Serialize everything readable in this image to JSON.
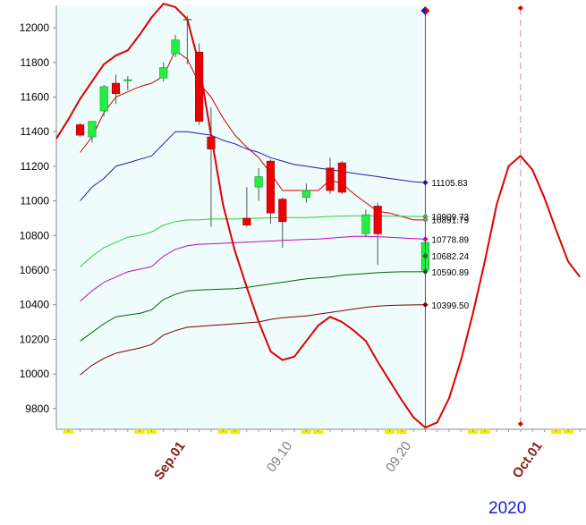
{
  "chart_data": {
    "type": "candlestick",
    "ylim": [
      9680,
      12130
    ],
    "y_ticks": [
      9800,
      10000,
      10200,
      10400,
      10600,
      10800,
      11000,
      11200,
      11400,
      11600,
      11800,
      12000
    ],
    "x_labels": [
      {
        "text": "Sep.01",
        "index": 9,
        "color": "#8b1a1a",
        "bold": true
      },
      {
        "text": "09.10",
        "index": 18,
        "color": "#808080",
        "bold": false
      },
      {
        "text": "09.20",
        "index": 28,
        "color": "#808080",
        "bold": false
      },
      {
        "text": "Oct.01",
        "index": 39,
        "color": "#8b1a1a",
        "bold": true
      }
    ],
    "year_label": "2020",
    "date_range": [
      -2,
      42.5
    ],
    "last_data_index": 29,
    "future_marker_index": 37,
    "grid": false,
    "candles": [
      {
        "i": 0,
        "open": 11440,
        "high": 11450,
        "low": 11370,
        "close": 11380
      },
      {
        "i": 1,
        "open": 11370,
        "high": 11460,
        "low": 11340,
        "close": 11460
      },
      {
        "i": 2,
        "open": 11520,
        "high": 11670,
        "low": 11490,
        "close": 11660
      },
      {
        "i": 3,
        "open": 11680,
        "high": 11730,
        "low": 11560,
        "close": 11620
      },
      {
        "i": 4,
        "open": 11695,
        "high": 11720,
        "low": 11640,
        "close": 11700
      },
      {
        "i": 7,
        "open": 11710,
        "high": 11800,
        "low": 11690,
        "close": 11770
      },
      {
        "i": 8,
        "open": 11850,
        "high": 11960,
        "low": 11830,
        "close": 11930
      },
      {
        "i": 9,
        "open": 12050,
        "high": 12070,
        "low": 11790,
        "close": 12050
      },
      {
        "i": 10,
        "open": 11860,
        "high": 11910,
        "low": 11440,
        "close": 11460
      },
      {
        "i": 11,
        "open": 11370,
        "high": 11540,
        "low": 10850,
        "close": 11300
      },
      {
        "i": 14,
        "open": 10900,
        "high": 11080,
        "low": 10850,
        "close": 10860
      },
      {
        "i": 15,
        "open": 11080,
        "high": 11190,
        "low": 11000,
        "close": 11140
      },
      {
        "i": 16,
        "open": 11230,
        "high": 11240,
        "low": 10870,
        "close": 10930
      },
      {
        "i": 17,
        "open": 11010,
        "high": 11020,
        "low": 10730,
        "close": 10880
      },
      {
        "i": 19,
        "open": 11020,
        "high": 11100,
        "low": 10990,
        "close": 11060
      },
      {
        "i": 21,
        "open": 11190,
        "high": 11250,
        "low": 11040,
        "close": 11060
      },
      {
        "i": 22,
        "open": 11220,
        "high": 11230,
        "low": 11040,
        "close": 11050
      },
      {
        "i": 24,
        "open": 10810,
        "high": 10950,
        "low": 10790,
        "close": 10920
      },
      {
        "i": 25,
        "open": 10970,
        "high": 10990,
        "low": 10630,
        "close": 10810
      },
      {
        "i": 29,
        "open": 10600,
        "high": 10780,
        "low": 10590,
        "close": 10760
      }
    ],
    "series": [
      {
        "color": "#cc0000",
        "width": 1,
        "end_label": "",
        "points": [
          [
            0,
            11280
          ],
          [
            1,
            11370
          ],
          [
            2,
            11510
          ],
          [
            3,
            11600
          ],
          [
            4,
            11630
          ],
          [
            5,
            11660
          ],
          [
            6,
            11680
          ],
          [
            7,
            11720
          ],
          [
            8,
            11870
          ],
          [
            9,
            11820
          ],
          [
            10,
            11680
          ],
          [
            11,
            11600
          ],
          [
            12,
            11480
          ],
          [
            13,
            11380
          ],
          [
            14,
            11310
          ],
          [
            15,
            11250
          ],
          [
            16,
            11160
          ],
          [
            17,
            11060
          ],
          [
            18,
            11060
          ],
          [
            19,
            11060
          ],
          [
            20,
            11060
          ],
          [
            21,
            11120
          ],
          [
            22,
            11100
          ],
          [
            23,
            11040
          ],
          [
            24,
            10990
          ],
          [
            25,
            10940
          ],
          [
            26,
            10930
          ],
          [
            27,
            10910
          ],
          [
            28,
            10890
          ],
          [
            29,
            10890
          ]
        ]
      },
      {
        "color": "#1a1ab0",
        "width": 1,
        "end_label": "11105.83",
        "points": [
          [
            0,
            11000
          ],
          [
            1,
            11080
          ],
          [
            2,
            11130
          ],
          [
            3,
            11200
          ],
          [
            4,
            11220
          ],
          [
            5,
            11240
          ],
          [
            6,
            11260
          ],
          [
            7,
            11330
          ],
          [
            8,
            11400
          ],
          [
            9,
            11400
          ],
          [
            10,
            11390
          ],
          [
            11,
            11380
          ],
          [
            12,
            11350
          ],
          [
            13,
            11330
          ],
          [
            14,
            11300
          ],
          [
            15,
            11280
          ],
          [
            16,
            11250
          ],
          [
            17,
            11230
          ],
          [
            18,
            11210
          ],
          [
            19,
            11200
          ],
          [
            20,
            11190
          ],
          [
            21,
            11180
          ],
          [
            22,
            11170
          ],
          [
            23,
            11160
          ],
          [
            24,
            11150
          ],
          [
            25,
            11140
          ],
          [
            26,
            11130
          ],
          [
            27,
            11120
          ],
          [
            28,
            11110
          ],
          [
            29,
            11105.83
          ]
        ]
      },
      {
        "color": "#33cc33",
        "width": 1,
        "end_label": "10909.73",
        "points": [
          [
            0,
            10620
          ],
          [
            1,
            10680
          ],
          [
            2,
            10730
          ],
          [
            3,
            10760
          ],
          [
            4,
            10790
          ],
          [
            5,
            10800
          ],
          [
            6,
            10820
          ],
          [
            7,
            10860
          ],
          [
            8,
            10880
          ],
          [
            9,
            10890
          ],
          [
            10,
            10890
          ],
          [
            11,
            10895
          ],
          [
            12,
            10895
          ],
          [
            13,
            10895
          ],
          [
            14,
            10898
          ],
          [
            15,
            10900
          ],
          [
            16,
            10902
          ],
          [
            17,
            10904
          ],
          [
            18,
            10904
          ],
          [
            19,
            10904
          ],
          [
            20,
            10906
          ],
          [
            21,
            10910
          ],
          [
            22,
            10912
          ],
          [
            23,
            10914
          ],
          [
            24,
            10914
          ],
          [
            25,
            10913
          ],
          [
            26,
            10912
          ],
          [
            27,
            10911
          ],
          [
            28,
            10910
          ],
          [
            29,
            10909.73
          ]
        ]
      },
      {
        "color": "#cc00cc",
        "width": 1,
        "end_label": "10778.89",
        "points": [
          [
            0,
            10420
          ],
          [
            1,
            10480
          ],
          [
            2,
            10530
          ],
          [
            3,
            10560
          ],
          [
            4,
            10590
          ],
          [
            5,
            10605
          ],
          [
            6,
            10620
          ],
          [
            7,
            10680
          ],
          [
            8,
            10720
          ],
          [
            9,
            10740
          ],
          [
            10,
            10750
          ],
          [
            11,
            10752
          ],
          [
            12,
            10755
          ],
          [
            13,
            10758
          ],
          [
            14,
            10762
          ],
          [
            15,
            10765
          ],
          [
            16,
            10768
          ],
          [
            17,
            10772
          ],
          [
            18,
            10775
          ],
          [
            19,
            10778
          ],
          [
            20,
            10780
          ],
          [
            21,
            10785
          ],
          [
            22,
            10790
          ],
          [
            23,
            10795
          ],
          [
            24,
            10795
          ],
          [
            25,
            10793
          ],
          [
            26,
            10790
          ],
          [
            27,
            10786
          ],
          [
            28,
            10782
          ],
          [
            29,
            10778.89
          ]
        ]
      },
      {
        "color": "#006600",
        "width": 1,
        "end_label": "10590.89",
        "points": [
          [
            0,
            10190
          ],
          [
            1,
            10240
          ],
          [
            2,
            10290
          ],
          [
            3,
            10330
          ],
          [
            4,
            10340
          ],
          [
            5,
            10350
          ],
          [
            6,
            10370
          ],
          [
            7,
            10430
          ],
          [
            8,
            10460
          ],
          [
            9,
            10480
          ],
          [
            10,
            10485
          ],
          [
            11,
            10488
          ],
          [
            12,
            10490
          ],
          [
            13,
            10493
          ],
          [
            14,
            10500
          ],
          [
            15,
            10510
          ],
          [
            16,
            10520
          ],
          [
            17,
            10530
          ],
          [
            18,
            10540
          ],
          [
            19,
            10550
          ],
          [
            20,
            10555
          ],
          [
            21,
            10560
          ],
          [
            22,
            10570
          ],
          [
            23,
            10575
          ],
          [
            24,
            10580
          ],
          [
            25,
            10585
          ],
          [
            26,
            10588
          ],
          [
            27,
            10590
          ],
          [
            28,
            10590
          ],
          [
            29,
            10590.89
          ]
        ]
      },
      {
        "color": "#800000",
        "width": 1,
        "end_label": "10399.50",
        "points": [
          [
            0,
            9995
          ],
          [
            1,
            10050
          ],
          [
            2,
            10090
          ],
          [
            3,
            10120
          ],
          [
            4,
            10135
          ],
          [
            5,
            10150
          ],
          [
            6,
            10170
          ],
          [
            7,
            10225
          ],
          [
            8,
            10250
          ],
          [
            9,
            10270
          ],
          [
            10,
            10275
          ],
          [
            11,
            10280
          ],
          [
            12,
            10285
          ],
          [
            13,
            10290
          ],
          [
            14,
            10295
          ],
          [
            15,
            10300
          ],
          [
            16,
            10315
          ],
          [
            17,
            10325
          ],
          [
            18,
            10330
          ],
          [
            19,
            10335
          ],
          [
            20,
            10345
          ],
          [
            21,
            10355
          ],
          [
            22,
            10365
          ],
          [
            23,
            10375
          ],
          [
            24,
            10385
          ],
          [
            25,
            10392
          ],
          [
            26,
            10396
          ],
          [
            27,
            10398
          ],
          [
            28,
            10399
          ],
          [
            29,
            10399.5
          ]
        ]
      },
      {
        "color": "#1a7a1a",
        "width": 1,
        "end_label": "10682.24",
        "points": [
          [
            29,
            10682.24
          ]
        ]
      },
      {
        "color": "#888888",
        "width": 1,
        "end_label": "10891.79",
        "points": [
          [
            29,
            10891.79
          ]
        ]
      },
      {
        "color": "#dd0000",
        "width": 2,
        "end_label": "",
        "points": [
          [
            -2,
            11360
          ],
          [
            -1,
            11470
          ],
          [
            0,
            11590
          ],
          [
            1,
            11690
          ],
          [
            2,
            11790
          ],
          [
            3,
            11840
          ],
          [
            4,
            11870
          ],
          [
            5,
            11960
          ],
          [
            6,
            12060
          ],
          [
            7,
            12140
          ],
          [
            8,
            12120
          ],
          [
            9,
            12050
          ],
          [
            10,
            11790
          ],
          [
            11,
            11380
          ],
          [
            12,
            10980
          ],
          [
            13,
            10710
          ],
          [
            14,
            10500
          ],
          [
            15,
            10300
          ],
          [
            16,
            10130
          ],
          [
            17,
            10080
          ],
          [
            18,
            10100
          ],
          [
            19,
            10190
          ],
          [
            20,
            10280
          ],
          [
            21,
            10330
          ],
          [
            22,
            10300
          ],
          [
            23,
            10250
          ],
          [
            24,
            10190
          ],
          [
            25,
            10070
          ],
          [
            26,
            9960
          ],
          [
            27,
            9850
          ],
          [
            28,
            9750
          ],
          [
            29,
            9690
          ],
          [
            30,
            9720
          ],
          [
            31,
            9860
          ],
          [
            32,
            10080
          ],
          [
            33,
            10350
          ],
          [
            34,
            10650
          ],
          [
            35,
            10980
          ],
          [
            36,
            11200
          ],
          [
            37,
            11260
          ],
          [
            38,
            11180
          ],
          [
            39,
            11020
          ],
          [
            40,
            10830
          ],
          [
            41,
            10650
          ],
          [
            42,
            10560
          ]
        ]
      }
    ]
  }
}
